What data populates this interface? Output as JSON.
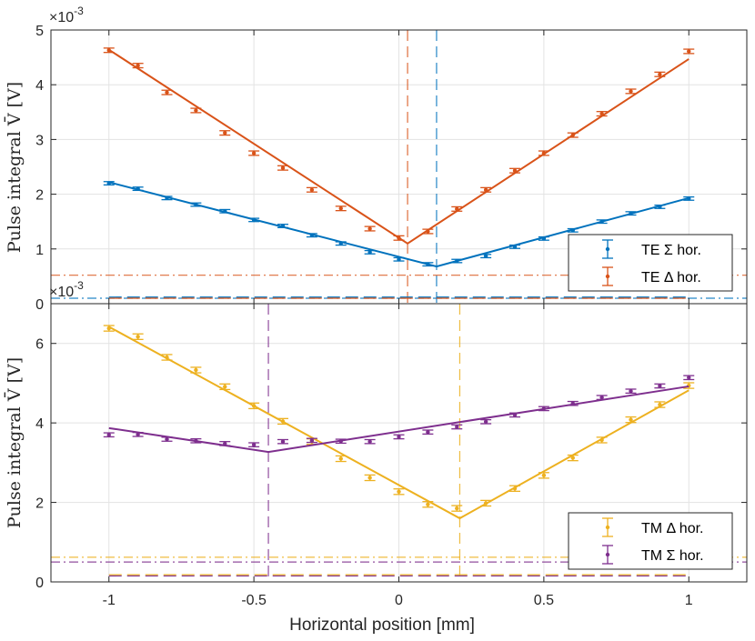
{
  "colors": {
    "blue": "#0072BD",
    "orange": "#D95319",
    "yellow": "#EDB120",
    "purple": "#7E2F8E"
  },
  "chart_data": [
    {
      "type": "line",
      "panel": "top",
      "ylabel": "Pulse integral V̄  [V]",
      "multiplier": "×10",
      "multiplier_exp": "-3",
      "xlim": [
        -1.2,
        1.2
      ],
      "ylim": [
        0,
        5
      ],
      "yticks": [
        0,
        1,
        2,
        3,
        4,
        5
      ],
      "ytick_labels": [
        "0",
        "1",
        "2",
        "3",
        "4",
        "5"
      ],
      "series": [
        {
          "name": "TE Σ hor.",
          "color": "blue",
          "x": [
            -1,
            -0.9,
            -0.8,
            -0.7,
            -0.6,
            -0.5,
            -0.4,
            -0.3,
            -0.2,
            -0.1,
            0,
            0.1,
            0.2,
            0.3,
            0.4,
            0.5,
            0.6,
            0.7,
            0.8,
            0.9,
            1
          ],
          "y": [
            2.2,
            2.1,
            1.93,
            1.81,
            1.69,
            1.53,
            1.42,
            1.25,
            1.1,
            0.94,
            0.81,
            0.72,
            0.78,
            0.87,
            1.04,
            1.19,
            1.34,
            1.5,
            1.65,
            1.77,
            1.92
          ],
          "err": 0.03,
          "fit": [
            [
              -1,
              2.22
            ],
            [
              0.13,
              0.68
            ],
            [
              1,
              1.93
            ]
          ],
          "vline": 0.13,
          "hline": 0.1
        },
        {
          "name": "TE Δ hor.",
          "color": "orange",
          "x": [
            -1,
            -0.9,
            -0.8,
            -0.7,
            -0.6,
            -0.5,
            -0.4,
            -0.3,
            -0.2,
            -0.1,
            0,
            0.1,
            0.2,
            0.3,
            0.4,
            0.5,
            0.6,
            0.7,
            0.8,
            0.9,
            1
          ],
          "y": [
            4.63,
            4.35,
            3.86,
            3.53,
            3.12,
            2.75,
            2.48,
            2.08,
            1.74,
            1.37,
            1.2,
            1.32,
            1.73,
            2.08,
            2.43,
            2.75,
            3.08,
            3.47,
            3.88,
            4.19,
            4.61
          ],
          "err": 0.04,
          "fit": [
            [
              -1,
              4.64
            ],
            [
              0.03,
              1.1
            ],
            [
              1,
              4.47
            ]
          ],
          "vline": 0.03,
          "hline": 0.52
        }
      ]
    },
    {
      "type": "line",
      "panel": "bottom",
      "ylabel": "Pulse integral V̄  [V]",
      "xlabel": "Horizontal position [mm]",
      "multiplier": "×10",
      "multiplier_exp": "-3",
      "xlim": [
        -1.2,
        1.2
      ],
      "ylim": [
        0,
        7
      ],
      "yticks": [
        0,
        2,
        4,
        6
      ],
      "ytick_labels": [
        "0",
        "2",
        "4",
        "6"
      ],
      "xticks": [
        -1,
        -0.5,
        0,
        0.5,
        1
      ],
      "xtick_labels": [
        "-1",
        "-0.5",
        "0",
        "0.5",
        "1"
      ],
      "series": [
        {
          "name": "TM Δ hor.",
          "color": "yellow",
          "x": [
            -1,
            -0.9,
            -0.8,
            -0.7,
            -0.6,
            -0.5,
            -0.4,
            -0.3,
            -0.2,
            -0.1,
            0,
            0.1,
            0.2,
            0.3,
            0.4,
            0.5,
            0.6,
            0.7,
            0.8,
            0.9,
            1
          ],
          "y": [
            6.38,
            6.17,
            5.65,
            5.33,
            4.91,
            4.43,
            4.04,
            3.53,
            3.1,
            2.62,
            2.27,
            1.95,
            1.85,
            1.98,
            2.35,
            2.68,
            3.12,
            3.57,
            4.08,
            4.46,
            4.94
          ],
          "err": 0.07,
          "fit": [
            [
              -1,
              6.42
            ],
            [
              0.21,
              1.6
            ],
            [
              1,
              4.82
            ]
          ],
          "vline": 0.21,
          "hline": 0.62
        },
        {
          "name": "TM Σ hor.",
          "color": "purple",
          "x": [
            -1,
            -0.9,
            -0.8,
            -0.7,
            -0.6,
            -0.5,
            -0.4,
            -0.3,
            -0.2,
            -0.1,
            0,
            0.1,
            0.2,
            0.3,
            0.4,
            0.5,
            0.6,
            0.7,
            0.8,
            0.9,
            1
          ],
          "y": [
            3.7,
            3.71,
            3.59,
            3.55,
            3.48,
            3.45,
            3.53,
            3.56,
            3.54,
            3.53,
            3.65,
            3.77,
            3.9,
            4.03,
            4.2,
            4.36,
            4.49,
            4.64,
            4.8,
            4.93,
            5.14
          ],
          "err": 0.05,
          "fit": [
            [
              -1,
              3.87
            ],
            [
              -0.45,
              3.27
            ],
            [
              1,
              4.92
            ]
          ],
          "vline": -0.45,
          "hline": 0.5
        }
      ]
    }
  ]
}
